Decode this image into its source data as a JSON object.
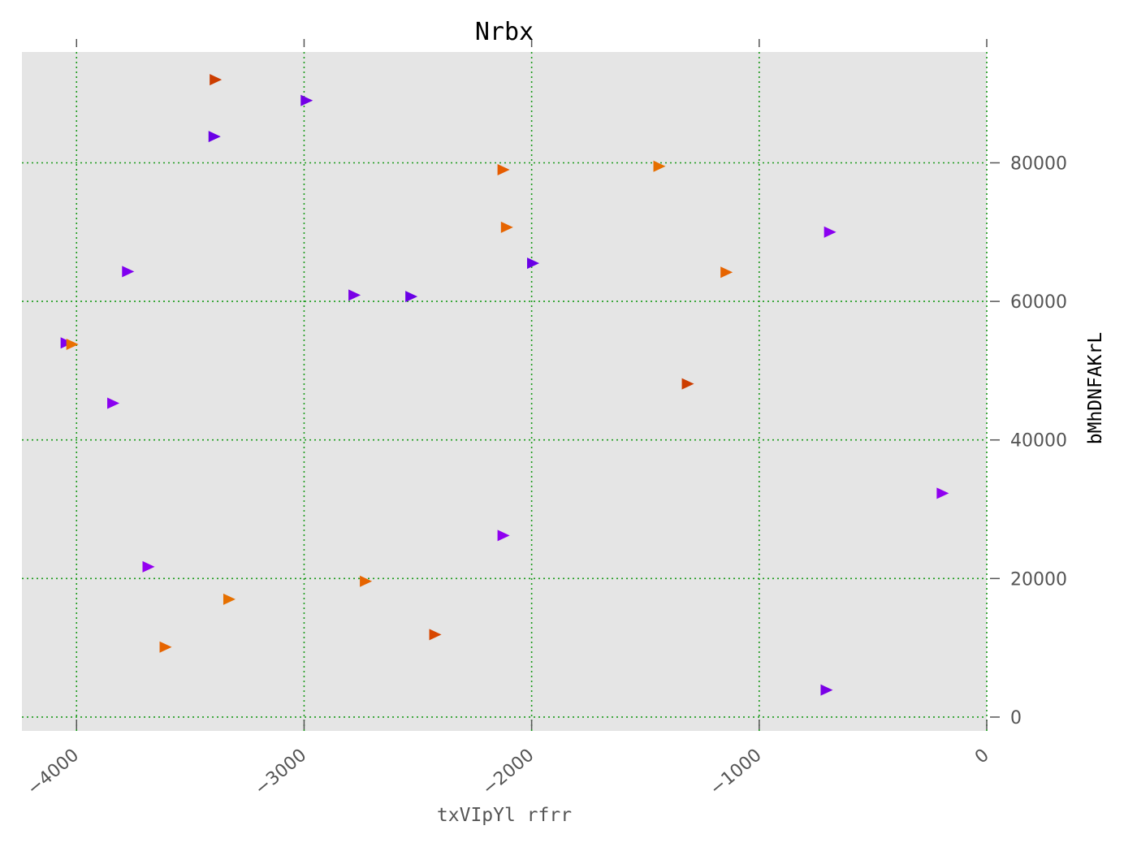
{
  "chart_data": {
    "type": "scatter",
    "title": "Nrbx",
    "xlabel": "txVIpYl rfrr",
    "ylabel": "bMhDNFAKrL",
    "xlim": [
      -4240,
      0
    ],
    "ylim": [
      -2000,
      96000
    ],
    "x_ticks": [
      -4000,
      -3000,
      -2000,
      -1000,
      0
    ],
    "x_tick_labels": [
      "−4000",
      "−3000",
      "−2000",
      "−1000",
      "0"
    ],
    "y_ticks": [
      0,
      20000,
      40000,
      60000,
      80000
    ],
    "y_tick_labels": [
      "0",
      "20000",
      "40000",
      "60000",
      "80000"
    ],
    "grid": true,
    "y_axis_side": "right",
    "colors": {
      "plot_background": "#e5e5e5",
      "grid": "#1a9a1a",
      "tick_text": "#555555"
    },
    "marker": "triangle-right",
    "points": [
      {
        "x": -3390,
        "y": 92000,
        "color": "#cc3d00"
      },
      {
        "x": -2990,
        "y": 89000,
        "color": "#7300e6"
      },
      {
        "x": -3395,
        "y": 83800,
        "color": "#6a00e6"
      },
      {
        "x": -2125,
        "y": 79000,
        "color": "#e65c00"
      },
      {
        "x": -1440,
        "y": 79500,
        "color": "#e66f00"
      },
      {
        "x": -2110,
        "y": 70700,
        "color": "#e66400"
      },
      {
        "x": -690,
        "y": 70000,
        "color": "#8a00f0"
      },
      {
        "x": -1995,
        "y": 65500,
        "color": "#6a00e6"
      },
      {
        "x": -3775,
        "y": 64300,
        "color": "#8000f0"
      },
      {
        "x": -1145,
        "y": 64200,
        "color": "#e66400"
      },
      {
        "x": -2780,
        "y": 60900,
        "color": "#7a00e6"
      },
      {
        "x": -2530,
        "y": 60700,
        "color": "#6a00e6"
      },
      {
        "x": -4045,
        "y": 54000,
        "color": "#8000f0"
      },
      {
        "x": -4020,
        "y": 53800,
        "color": "#ea7000"
      },
      {
        "x": -1315,
        "y": 48100,
        "color": "#cc3d00"
      },
      {
        "x": -3840,
        "y": 45300,
        "color": "#8a00f0"
      },
      {
        "x": -195,
        "y": 32300,
        "color": "#9000f0"
      },
      {
        "x": -2125,
        "y": 26200,
        "color": "#9000f0"
      },
      {
        "x": -3685,
        "y": 21700,
        "color": "#9400f0"
      },
      {
        "x": -2730,
        "y": 19600,
        "color": "#e66400"
      },
      {
        "x": -3330,
        "y": 17000,
        "color": "#e67000"
      },
      {
        "x": -2425,
        "y": 11900,
        "color": "#d84600"
      },
      {
        "x": -3610,
        "y": 10100,
        "color": "#e66400"
      },
      {
        "x": -705,
        "y": 3900,
        "color": "#7a00e6"
      }
    ]
  }
}
